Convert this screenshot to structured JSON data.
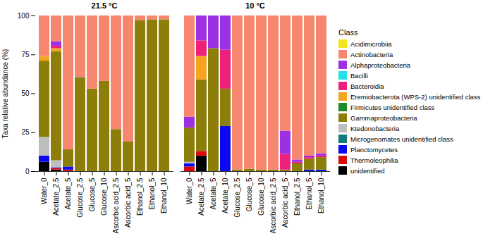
{
  "chart_data": {
    "type": "bar",
    "stacked": true,
    "grid": false,
    "ylabel": "Taxa relative abundance (%)",
    "ylim": [
      0,
      100
    ],
    "yticks": [
      0,
      25,
      50,
      75,
      100
    ],
    "legend_title": "Class",
    "legend": "right",
    "panels": [
      {
        "title": "21.5 °C",
        "categories": [
          "Water_0",
          "Acetate_2.5",
          "Acetate_5",
          "Glucose_2.5",
          "Glucose_5",
          "Glucose_10",
          "Ascorbic acid_2.5",
          "Ascorbic acid_5",
          "Ethanol_2.5",
          "Ethanol_5",
          "Ethanol_10"
        ],
        "series": [
          {
            "name": "Acidimicrobiia",
            "color": "#F2E51D",
            "values": [
              0,
              0,
              0,
              0,
              0,
              0,
              0,
              0,
              0,
              0,
              0
            ]
          },
          {
            "name": "Actinobacteria",
            "color": "#F6866D",
            "values": [
              26,
              16.5,
              86,
              39.5,
              47,
              42,
              73,
              81,
              3,
              2.5,
              2.5
            ]
          },
          {
            "name": "Alphaproteobacteria",
            "color": "#9C31E3",
            "values": [
              0,
              3,
              0,
              0,
              0,
              0,
              0,
              0,
              0,
              0,
              0
            ]
          },
          {
            "name": "Bacilli",
            "color": "#22E0E6",
            "values": [
              0,
              0,
              0,
              0,
              0,
              0,
              0,
              0,
              0,
              0,
              0
            ]
          },
          {
            "name": "Bacteroidia",
            "color": "#EF1F7C",
            "values": [
              0,
              1.5,
              0,
              0,
              0,
              0,
              0,
              0,
              0,
              0,
              0
            ]
          },
          {
            "name": "Eremiobacterota (WPS-2) unidentified class",
            "color": "#F4A41F",
            "values": [
              3,
              2,
              0,
              0,
              0,
              0,
              0,
              0,
              0,
              0,
              0
            ]
          },
          {
            "name": "Firmicutes unidentified class",
            "color": "#1F8A28",
            "values": [
              0,
              0,
              0,
              0.5,
              0,
              0,
              0,
              0,
              0,
              0,
              0
            ]
          },
          {
            "name": "Gammaproteobacteria",
            "color": "#8C7E08",
            "values": [
              49,
              70,
              11,
              60,
              53,
              58,
              27,
              19,
              97,
              97.5,
              97.5
            ]
          },
          {
            "name": "Ktedonobacteria",
            "color": "#BEBEBE",
            "values": [
              12,
              4.5,
              0,
              0,
              0,
              0,
              0,
              0,
              0,
              0,
              0
            ]
          },
          {
            "name": "Microgenomates unidentified class",
            "color": "#0E7C7B",
            "values": [
              0,
              0,
              0,
              0,
              0,
              0,
              0,
              0,
              0,
              0,
              0
            ]
          },
          {
            "name": "Planctomycetes",
            "color": "#0A0AEE",
            "values": [
              4,
              0.5,
              2,
              0,
              0,
              0,
              0,
              0,
              0,
              0,
              0
            ]
          },
          {
            "name": "Thermoleophilia",
            "color": "#DC0A0A",
            "values": [
              0,
              1,
              1,
              0,
              0,
              0,
              0,
              0,
              0,
              0,
              0
            ]
          },
          {
            "name": "unidentified",
            "color": "#000000",
            "values": [
              6,
              1,
              0,
              0,
              0,
              0,
              0,
              0,
              0,
              0,
              0
            ]
          }
        ]
      },
      {
        "title": "10 °C",
        "categories": [
          "Water_0",
          "Acetate_2.5",
          "Acetate_5",
          "Acetate_10",
          "Glucose_2.5",
          "Glucose_5",
          "Glucose_10",
          "Ascorbic acid_2.5",
          "Ascorbic acid_5",
          "Ethanol_2.5",
          "Ethanol_5",
          "Ethanol_10"
        ],
        "series": [
          {
            "name": "Acidimicrobiia",
            "color": "#F2E51D",
            "values": [
              0,
              0,
              0,
              0,
              0,
              0,
              0,
              0,
              0,
              0,
              0,
              0
            ]
          },
          {
            "name": "Actinobacteria",
            "color": "#F6866D",
            "values": [
              65,
              0,
              0,
              0,
              99,
              98.5,
              99,
              99,
              74,
              92.5,
              90,
              88.5
            ]
          },
          {
            "name": "Alphaproteobacteria",
            "color": "#9C31E3",
            "values": [
              7,
              16,
              21,
              22,
              0,
              0,
              0,
              0,
              15,
              1.5,
              1,
              1.5
            ]
          },
          {
            "name": "Bacilli",
            "color": "#22E0E6",
            "values": [
              0,
              0,
              0,
              0,
              0,
              0,
              0,
              0,
              0,
              0,
              0,
              0
            ]
          },
          {
            "name": "Bacteroidia",
            "color": "#EF1F7C",
            "values": [
              0,
              10,
              0,
              25,
              0,
              0,
              0,
              0,
              10,
              1,
              1,
              1
            ]
          },
          {
            "name": "Eremiobacterota (WPS-2) unidentified class",
            "color": "#F4A41F",
            "values": [
              0,
              15,
              0,
              0,
              0,
              0,
              0,
              0,
              0,
              0,
              0,
              0
            ]
          },
          {
            "name": "Firmicutes unidentified class",
            "color": "#1F8A28",
            "values": [
              0,
              0,
              0,
              0,
              0,
              0,
              0,
              0,
              0,
              0,
              0,
              0
            ]
          },
          {
            "name": "Gammaproteobacteria",
            "color": "#8C7E08",
            "values": [
              22,
              46,
              79,
              24,
              1,
              1.5,
              1,
              1,
              1,
              5,
              7,
              8
            ]
          },
          {
            "name": "Ktedonobacteria",
            "color": "#BEBEBE",
            "values": [
              1,
              0,
              0,
              0,
              0,
              0,
              0,
              0,
              0,
              0,
              0,
              0
            ]
          },
          {
            "name": "Microgenomates unidentified class",
            "color": "#0E7C7B",
            "values": [
              0,
              0,
              0,
              0,
              0,
              0,
              0,
              0,
              0,
              0,
              0,
              0
            ]
          },
          {
            "name": "Planctomycetes",
            "color": "#0A0AEE",
            "values": [
              2,
              0,
              0,
              29,
              0,
              0,
              0,
              0,
              0,
              0,
              1,
              1
            ]
          },
          {
            "name": "Thermoleophilia",
            "color": "#DC0A0A",
            "values": [
              3,
              3,
              0,
              0,
              0,
              0,
              0,
              0,
              0,
              0,
              0,
              0
            ]
          },
          {
            "name": "unidentified",
            "color": "#000000",
            "values": [
              0,
              10,
              0,
              0,
              0,
              0,
              0,
              0,
              0,
              0,
              0,
              0
            ]
          }
        ]
      }
    ]
  }
}
